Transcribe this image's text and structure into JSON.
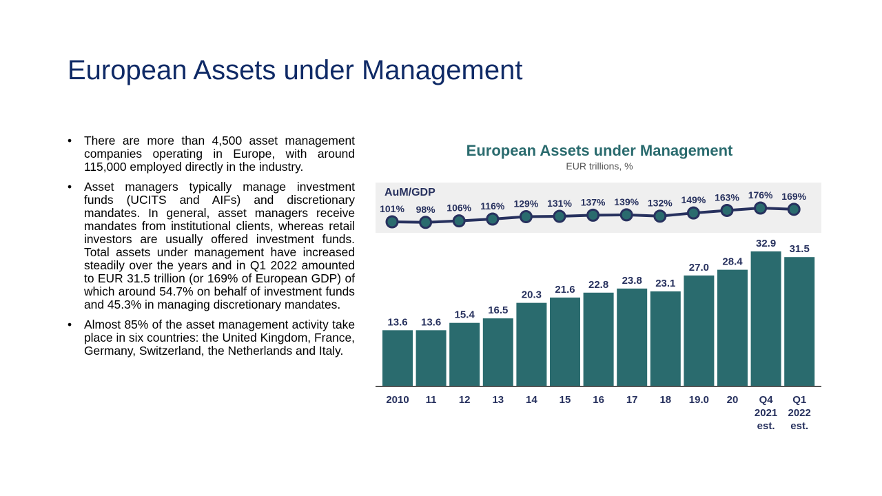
{
  "slide": {
    "title": "European Assets under Management",
    "bullets": [
      "There are more than 4,500 asset management companies operating in Europe, with around 115,000 employed directly in the industry.",
      "Asset managers typically manage investment funds (UCITS and AIFs) and discretionary mandates.  In general, asset managers receive mandates from institutional clients, whereas retail investors are usually offered investment funds. Total assets under management have increased steadily over the years and in Q1 2022 amounted to EUR 31.5 trillion (or 169% of European GDP) of which around 54.7% on behalf of investment funds and 45.3% in managing discretionary mandates.",
      "Almost 85% of the asset management activity take place in six countries: the United Kingdom, France, Germany, Switzerland, the Netherlands and Italy."
    ]
  },
  "chart_data": {
    "type": "bar",
    "title": "European Assets under Management",
    "subtitle": "EUR trillions, %",
    "categories": [
      "2010",
      "11",
      "12",
      "13",
      "14",
      "15",
      "16",
      "17",
      "18",
      "19.0",
      "20",
      "Q4\n2021\nest.",
      "Q1\n2022\nest."
    ],
    "series": [
      {
        "values": [
          13.6,
          13.6,
          15.4,
          16.5,
          20.3,
          21.6,
          22.8,
          23.8,
          23.1,
          27.0,
          28.4,
          32.9,
          31.5
        ],
        "color": "#2a6b6e"
      }
    ],
    "line_series": {
      "name": "AuM/GDP",
      "type": "line",
      "values": [
        101,
        98,
        106,
        116,
        129,
        131,
        137,
        139,
        132,
        149,
        163,
        176,
        169
      ],
      "labels": [
        "101%",
        "98%",
        "106%",
        "116%",
        "129%",
        "131%",
        "137%",
        "139%",
        "132%",
        "149%",
        "163%",
        "176%",
        "169%"
      ],
      "line_color": "#27315e",
      "marker_color": "#2a6b6e",
      "panel_color": "#efefef"
    },
    "title_color": "#2a6b6e",
    "label_color": "#27315e",
    "grid": false
  }
}
